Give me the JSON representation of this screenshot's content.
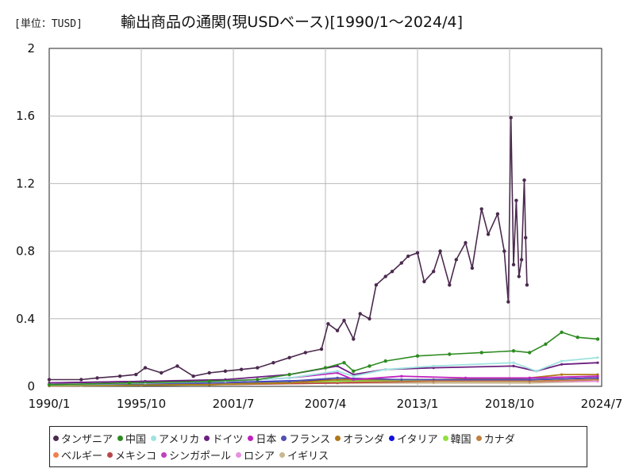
{
  "header": {
    "unit": "[単位：TUSD]",
    "title": "輸出商品の通関(現USDベース)[1990/1〜2024/4]"
  },
  "chart_data": {
    "type": "line",
    "title": "輸出商品の通関(現USDベース)[1990/1〜2024/4]",
    "unit": "TUSD",
    "xlabel": "",
    "ylabel": "",
    "x_range": [
      "1990/1",
      "2024/7"
    ],
    "x_ticks": [
      "1990/1",
      "1995/10",
      "2001/7",
      "2007/4",
      "2013/1",
      "2018/10",
      "2024/7"
    ],
    "ylim": [
      0,
      2
    ],
    "y_ticks": [
      "0",
      "0.4",
      "0.8",
      "1.2",
      "1.6",
      "2"
    ],
    "grid": true,
    "legend_position": "bottom",
    "series": [
      {
        "name": "タンザニア",
        "color": "#4b2a4e",
        "points": [
          [
            "1990/1",
            0.04
          ],
          [
            "1992/1",
            0.04
          ],
          [
            "1993/1",
            0.05
          ],
          [
            "1994/6",
            0.06
          ],
          [
            "1995/6",
            0.07
          ],
          [
            "1996/1",
            0.11
          ],
          [
            "1997/1",
            0.08
          ],
          [
            "1998/1",
            0.12
          ],
          [
            "1999/1",
            0.06
          ],
          [
            "2000/1",
            0.08
          ],
          [
            "2001/1",
            0.09
          ],
          [
            "2002/1",
            0.1
          ],
          [
            "2003/1",
            0.11
          ],
          [
            "2004/1",
            0.14
          ],
          [
            "2005/1",
            0.17
          ],
          [
            "2006/1",
            0.2
          ],
          [
            "2007/1",
            0.22
          ],
          [
            "2007/6",
            0.37
          ],
          [
            "2008/1",
            0.33
          ],
          [
            "2008/6",
            0.39
          ],
          [
            "2009/1",
            0.28
          ],
          [
            "2009/6",
            0.43
          ],
          [
            "2010/1",
            0.4
          ],
          [
            "2010/6",
            0.6
          ],
          [
            "2011/1",
            0.65
          ],
          [
            "2011/6",
            0.68
          ],
          [
            "2012/1",
            0.73
          ],
          [
            "2012/6",
            0.77
          ],
          [
            "2013/1",
            0.79
          ],
          [
            "2013/6",
            0.62
          ],
          [
            "2014/1",
            0.68
          ],
          [
            "2014/6",
            0.8
          ],
          [
            "2015/1",
            0.6
          ],
          [
            "2015/6",
            0.75
          ],
          [
            "2016/1",
            0.85
          ],
          [
            "2016/6",
            0.7
          ],
          [
            "2017/1",
            1.05
          ],
          [
            "2017/6",
            0.9
          ],
          [
            "2018/1",
            1.02
          ],
          [
            "2018/6",
            0.8
          ],
          [
            "2018/9",
            0.5
          ],
          [
            "2018/11",
            1.59
          ],
          [
            "2019/1",
            0.72
          ],
          [
            "2019/3",
            1.1
          ],
          [
            "2019/5",
            0.65
          ],
          [
            "2019/7",
            0.75
          ],
          [
            "2019/9",
            1.22
          ],
          [
            "2019/10",
            0.88
          ],
          [
            "2019/11",
            0.6
          ]
        ]
      },
      {
        "name": "中国",
        "color": "#2e8b22",
        "points": [
          [
            "1990/1",
            0.01
          ],
          [
            "1995/1",
            0.02
          ],
          [
            "2000/1",
            0.03
          ],
          [
            "2003/1",
            0.04
          ],
          [
            "2005/1",
            0.07
          ],
          [
            "2007/4",
            0.11
          ],
          [
            "2008/6",
            0.14
          ],
          [
            "2009/1",
            0.09
          ],
          [
            "2010/1",
            0.12
          ],
          [
            "2011/1",
            0.15
          ],
          [
            "2013/1",
            0.18
          ],
          [
            "2015/1",
            0.19
          ],
          [
            "2017/1",
            0.2
          ],
          [
            "2019/1",
            0.21
          ],
          [
            "2020/1",
            0.2
          ],
          [
            "2021/1",
            0.25
          ],
          [
            "2022/1",
            0.32
          ],
          [
            "2023/1",
            0.29
          ],
          [
            "2024/4",
            0.28
          ]
        ]
      },
      {
        "name": "アメリカ",
        "color": "#9fe3e0",
        "points": [
          [
            "1990/1",
            0.01
          ],
          [
            "1996/1",
            0.02
          ],
          [
            "2001/1",
            0.03
          ],
          [
            "2005/1",
            0.05
          ],
          [
            "2008/1",
            0.09
          ],
          [
            "2009/1",
            0.06
          ],
          [
            "2011/1",
            0.1
          ],
          [
            "2014/1",
            0.12
          ],
          [
            "2019/1",
            0.14
          ],
          [
            "2020/6",
            0.09
          ],
          [
            "2022/1",
            0.15
          ],
          [
            "2024/4",
            0.17
          ]
        ]
      },
      {
        "name": "ドイツ",
        "color": "#6b2080",
        "points": [
          [
            "1990/1",
            0.02
          ],
          [
            "1996/1",
            0.03
          ],
          [
            "2001/1",
            0.04
          ],
          [
            "2005/1",
            0.07
          ],
          [
            "2008/1",
            0.12
          ],
          [
            "2009/1",
            0.07
          ],
          [
            "2011/1",
            0.1
          ],
          [
            "2014/1",
            0.11
          ],
          [
            "2019/1",
            0.12
          ],
          [
            "2020/6",
            0.09
          ],
          [
            "2022/1",
            0.13
          ],
          [
            "2024/4",
            0.14
          ]
        ]
      },
      {
        "name": "日本",
        "color": "#c020c0",
        "points": [
          [
            "1990/1",
            0.02
          ],
          [
            "1996/1",
            0.03
          ],
          [
            "2001/1",
            0.03
          ],
          [
            "2005/1",
            0.05
          ],
          [
            "2008/1",
            0.08
          ],
          [
            "2009/1",
            0.04
          ],
          [
            "2012/1",
            0.06
          ],
          [
            "2016/1",
            0.05
          ],
          [
            "2020/1",
            0.05
          ],
          [
            "2024/4",
            0.06
          ]
        ]
      },
      {
        "name": "フランス",
        "color": "#5050b0",
        "points": [
          [
            "1990/1",
            0.01
          ],
          [
            "2000/1",
            0.02
          ],
          [
            "2005/1",
            0.03
          ],
          [
            "2008/1",
            0.05
          ],
          [
            "2012/1",
            0.04
          ],
          [
            "2020/1",
            0.04
          ],
          [
            "2024/4",
            0.05
          ]
        ]
      },
      {
        "name": "オランダ",
        "color": "#b07818",
        "points": [
          [
            "1990/1",
            0.01
          ],
          [
            "2000/1",
            0.01
          ],
          [
            "2005/1",
            0.02
          ],
          [
            "2008/1",
            0.04
          ],
          [
            "2014/1",
            0.04
          ],
          [
            "2020/1",
            0.05
          ],
          [
            "2022/1",
            0.07
          ],
          [
            "2024/4",
            0.07
          ]
        ]
      },
      {
        "name": "イタリア",
        "color": "#1010e0",
        "points": [
          [
            "1990/1",
            0.01
          ],
          [
            "2000/1",
            0.02
          ],
          [
            "2008/1",
            0.04
          ],
          [
            "2014/1",
            0.04
          ],
          [
            "2020/1",
            0.04
          ],
          [
            "2024/4",
            0.05
          ]
        ]
      },
      {
        "name": "韓国",
        "color": "#90e040",
        "points": [
          [
            "1990/1",
            0.005
          ],
          [
            "2000/1",
            0.01
          ],
          [
            "2008/1",
            0.03
          ],
          [
            "2014/1",
            0.04
          ],
          [
            "2020/1",
            0.04
          ],
          [
            "2024/4",
            0.05
          ]
        ]
      },
      {
        "name": "カナダ",
        "color": "#c08040",
        "points": [
          [
            "1990/1",
            0.01
          ],
          [
            "2000/1",
            0.02
          ],
          [
            "2008/1",
            0.03
          ],
          [
            "2014/1",
            0.03
          ],
          [
            "2020/1",
            0.03
          ],
          [
            "2024/4",
            0.04
          ]
        ]
      },
      {
        "name": "ベルギー",
        "color": "#f08050",
        "points": [
          [
            "1990/1",
            0.01
          ],
          [
            "2000/1",
            0.01
          ],
          [
            "2008/1",
            0.03
          ],
          [
            "2014/1",
            0.03
          ],
          [
            "2020/1",
            0.03
          ],
          [
            "2024/4",
            0.04
          ]
        ]
      },
      {
        "name": "メキシコ",
        "color": "#b84848",
        "points": [
          [
            "1990/1",
            0.002
          ],
          [
            "2000/1",
            0.01
          ],
          [
            "2008/1",
            0.02
          ],
          [
            "2014/1",
            0.03
          ],
          [
            "2020/1",
            0.03
          ],
          [
            "2024/4",
            0.04
          ]
        ]
      },
      {
        "name": "シンガポール",
        "color": "#c040c0",
        "points": [
          [
            "1990/1",
            0.005
          ],
          [
            "2000/1",
            0.01
          ],
          [
            "2008/1",
            0.03
          ],
          [
            "2014/1",
            0.03
          ],
          [
            "2020/1",
            0.03
          ],
          [
            "2024/4",
            0.04
          ]
        ]
      },
      {
        "name": "ロシア",
        "color": "#e890e0",
        "points": [
          [
            "1992/1",
            0.005
          ],
          [
            "2000/1",
            0.01
          ],
          [
            "2008/1",
            0.03
          ],
          [
            "2014/1",
            0.03
          ],
          [
            "2020/1",
            0.03
          ],
          [
            "2024/4",
            0.03
          ]
        ]
      },
      {
        "name": "イギリス",
        "color": "#c8b890",
        "points": [
          [
            "1990/1",
            0.01
          ],
          [
            "2000/1",
            0.01
          ],
          [
            "2008/1",
            0.02
          ],
          [
            "2014/1",
            0.02
          ],
          [
            "2020/1",
            0.02
          ],
          [
            "2024/4",
            0.03
          ]
        ]
      }
    ]
  }
}
